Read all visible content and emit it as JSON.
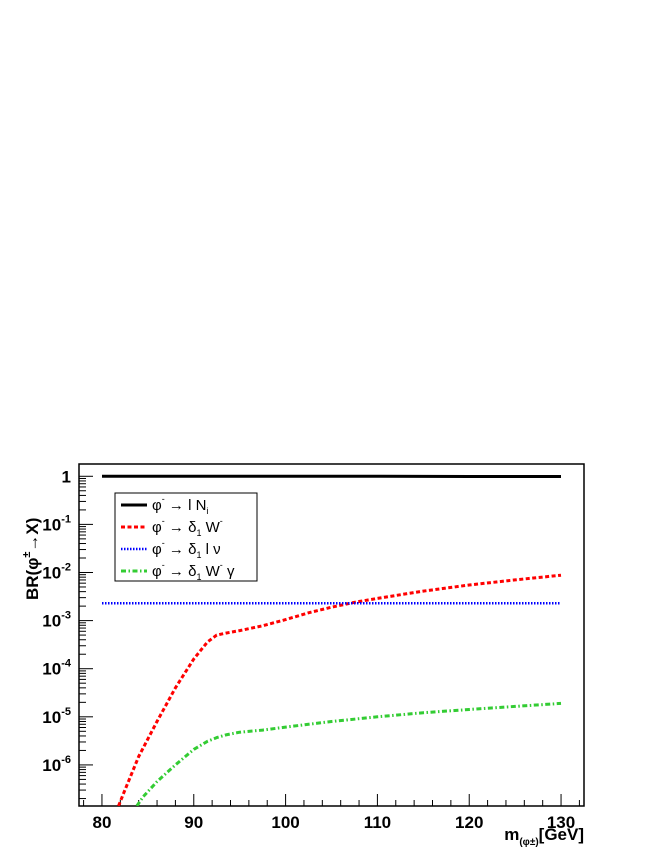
{
  "chart_data": {
    "type": "line",
    "title": "",
    "xlabel": {
      "main": "m",
      "sub": "(φ±)",
      "unit": "[GeV]"
    },
    "ylabel": {
      "prefix": "BR(φ",
      "sup": "±",
      "suffix": "→X)"
    },
    "xlim": [
      77.5,
      132.5
    ],
    "ylim": [
      1.4e-07,
      1.8
    ],
    "yscale": "log",
    "grid": false,
    "legend_position": "top-left",
    "x_ticks": [
      80,
      90,
      100,
      110,
      120,
      130
    ],
    "x_tick_labels": [
      "80",
      "90",
      "100",
      "110",
      "120",
      "130"
    ],
    "y_ticks": [
      1,
      0.1,
      0.01,
      0.001,
      0.0001,
      1e-05,
      1e-06
    ],
    "y_tick_labels": [
      {
        "base": "1",
        "exp": ""
      },
      {
        "base": "10",
        "exp": "-1"
      },
      {
        "base": "10",
        "exp": "-2"
      },
      {
        "base": "10",
        "exp": "-3"
      },
      {
        "base": "10",
        "exp": "-4"
      },
      {
        "base": "10",
        "exp": "-5"
      },
      {
        "base": "10",
        "exp": "-6"
      }
    ],
    "series": [
      {
        "id": "lN",
        "name": "φ⁻ → l Nᵢ",
        "legend": {
          "head": "φ",
          "headSup": "-",
          "arrow": " → ",
          "mid": "l N",
          "midSub": "i",
          "tail": "",
          "tailSup": "",
          "end": ""
        },
        "color": "#000000",
        "style": "solid",
        "x": [
          80,
          90,
          100,
          110,
          120,
          130
        ],
        "y": [
          1.0,
          1.0,
          1.0,
          1.0,
          0.99,
          0.99
        ]
      },
      {
        "id": "d1W",
        "name": "φ⁻ → δ₁ W⁻",
        "legend": {
          "head": "φ",
          "headSup": "-",
          "arrow": " → ",
          "mid": "δ",
          "midSub": "1",
          "tail": " W",
          "tailSup": "-",
          "end": ""
        },
        "color": "#ff0000",
        "style": "dashed",
        "x": [
          81.8,
          82.5,
          84,
          86,
          88,
          90,
          91.5,
          92.5,
          93.5,
          95,
          97.5,
          100,
          102.5,
          105,
          107.5,
          110,
          115,
          120,
          125,
          130
        ],
        "y": [
          1.4e-07,
          3e-07,
          1.5e-06,
          8e-06,
          4e-05,
          0.00016,
          0.00036,
          0.0005,
          0.00055,
          0.00062,
          0.00078,
          0.00105,
          0.00145,
          0.0019,
          0.0024,
          0.0029,
          0.0041,
          0.0055,
          0.007,
          0.0088
        ]
      },
      {
        "id": "d1lnu",
        "name": "φ⁻ → δ₁ l ν",
        "legend": {
          "head": "φ",
          "headSup": "-",
          "arrow": " → ",
          "mid": "δ",
          "midSub": "1",
          "tail": " l ν",
          "tailSup": "",
          "end": ""
        },
        "color": "#0000ff",
        "style": "dotted",
        "x": [
          80,
          90,
          100,
          110,
          120,
          130
        ],
        "y": [
          0.0023,
          0.0023,
          0.0023,
          0.0023,
          0.0023,
          0.0023
        ]
      },
      {
        "id": "d1Wgamma",
        "name": "φ⁻ → δ₁ W⁻ γ",
        "legend": {
          "head": "φ",
          "headSup": "-",
          "arrow": " → ",
          "mid": "δ",
          "midSub": "1",
          "tail": " W",
          "tailSup": "-",
          "end": " γ"
        },
        "color": "#33cc33",
        "style": "dashdot",
        "x": [
          83.8,
          84.5,
          86,
          88,
          90,
          91.5,
          92.5,
          93.5,
          95,
          97.5,
          100,
          105,
          110,
          115,
          120,
          125,
          130
        ],
        "y": [
          1.4e-07,
          2.2e-07,
          4.5e-07,
          1e-06,
          2.1e-06,
          3.1e-06,
          3.7e-06,
          4.2e-06,
          4.8e-06,
          5.3e-06,
          6.1e-06,
          8e-06,
          1e-05,
          1.22e-05,
          1.42e-05,
          1.65e-05,
          1.9e-05
        ]
      }
    ]
  }
}
